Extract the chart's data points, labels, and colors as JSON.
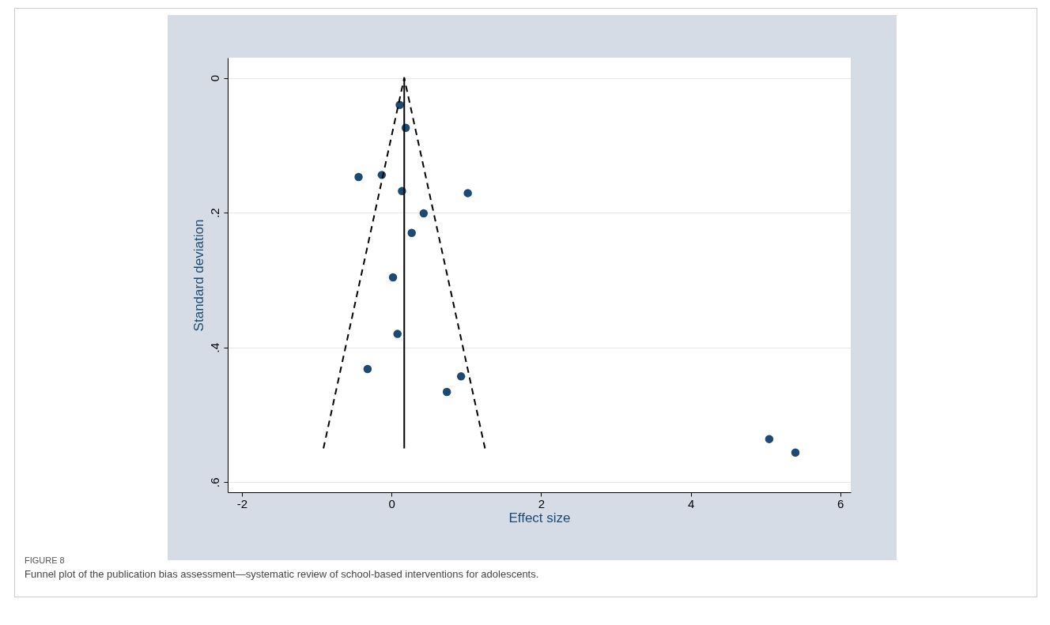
{
  "chart_data": {
    "type": "scatter",
    "xlabel": "Effect size",
    "ylabel": "Standard deviation",
    "xlim": [
      -2.19,
      6.14
    ],
    "xticks": [
      -2,
      0,
      2,
      4,
      6
    ],
    "ylim": [
      0.615,
      -0.03
    ],
    "yticks": [
      0,
      {
        "value": 0.2,
        "label": ".2"
      },
      {
        "value": 0.4,
        "label": ".4"
      },
      {
        "value": 0.6,
        "label": ".6"
      }
    ],
    "grid": "y",
    "series": [
      {
        "color": "#1b4a73",
        "marker": "circle",
        "x": [
          0.11,
          0.19,
          -0.44,
          -0.13,
          0.14,
          1.02,
          0.43,
          0.27,
          0.02,
          0.08,
          -0.32,
          0.93,
          0.74,
          5.05,
          5.4
        ],
        "values": [
          0.04,
          0.074,
          0.147,
          0.144,
          0.168,
          0.171,
          0.201,
          0.23,
          0.296,
          0.38,
          0.432,
          0.443,
          0.466,
          0.536,
          0.556
        ]
      },
      {
        "type": "line",
        "color": "#000000",
        "line_style": "dashed",
        "x": [
          -0.91,
          0.17,
          1.25
        ],
        "values": [
          0.55,
          0,
          0.55
        ]
      },
      {
        "type": "line",
        "color": "#000000",
        "line_style": "solid",
        "x": [
          0.17,
          0.17
        ],
        "values": [
          0.55,
          0
        ]
      }
    ],
    "annotations": [
      "FIGURE 8",
      "Funnel plot of the publication bias assessment—systematic review of school-based interventions for adolescents."
    ]
  }
}
